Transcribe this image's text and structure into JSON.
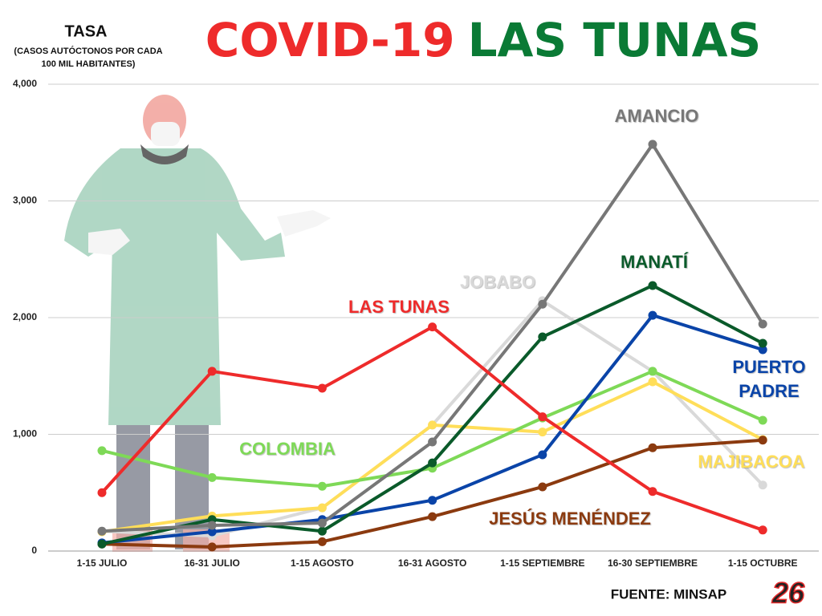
{
  "chart_data": {
    "type": "line",
    "title": [
      "COVID-19",
      "LAS TUNAS"
    ],
    "title_colors": [
      "#ee2b2b",
      "#0a7a35"
    ],
    "y_label": "TASA",
    "y_sublabel": "(CASOS AUTÓCTONOS POR CADA 100 MIL HABITANTES)",
    "source": "FUENTE: MINSAP",
    "logo": "26",
    "categories": [
      "1-15 JULIO",
      "16-31 JULIO",
      "1-15 AGOSTO",
      "16-31 AGOSTO",
      "1-15 SEPTIEMBRE",
      "16-30 SEPTIEMBRE",
      "1-15 OCTUBRE"
    ],
    "ylim": [
      0,
      4000
    ],
    "yticks": [
      0,
      {
        "value": 1000,
        "label": "1,000"
      },
      {
        "value": 2000,
        "label": "2,000"
      },
      {
        "value": 3000,
        "label": "3,000"
      },
      {
        "value": 4000,
        "label": "4,000"
      }
    ],
    "grid": true,
    "series": [
      {
        "name": "JOBABO",
        "color": "#d9d9d9",
        "values": [
          170,
          130,
          370,
          1080,
          2145,
          1540,
          565
        ]
      },
      {
        "name": "MAJIBACOA",
        "color": "#ffde59",
        "values": [
          165,
          300,
          370,
          1080,
          1020,
          1450,
          955
        ]
      },
      {
        "name": "COLOMBIA",
        "color": "#7ed957",
        "values": [
          860,
          630,
          555,
          710,
          1140,
          1540,
          1120
        ]
      },
      {
        "name": "JESÚS MENÉNDEZ",
        "color": "#8b3a0f",
        "values": [
          60,
          35,
          80,
          295,
          550,
          885,
          950
        ]
      },
      {
        "name": "PUERTO PADRE",
        "color": "#0a44a8",
        "values": [
          70,
          165,
          270,
          435,
          825,
          2020,
          1725
        ]
      },
      {
        "name": "MANATÍ",
        "color": "#0a5a2a",
        "values": [
          60,
          270,
          170,
          755,
          1835,
          2275,
          1780
        ]
      },
      {
        "name": "AMANCIO",
        "color": "#777777",
        "values": [
          170,
          220,
          240,
          935,
          2115,
          3485,
          1945
        ]
      },
      {
        "name": "LAS TUNAS",
        "color": "#ee2b2b",
        "values": [
          500,
          1540,
          1395,
          1920,
          1150,
          510,
          180
        ]
      }
    ]
  }
}
